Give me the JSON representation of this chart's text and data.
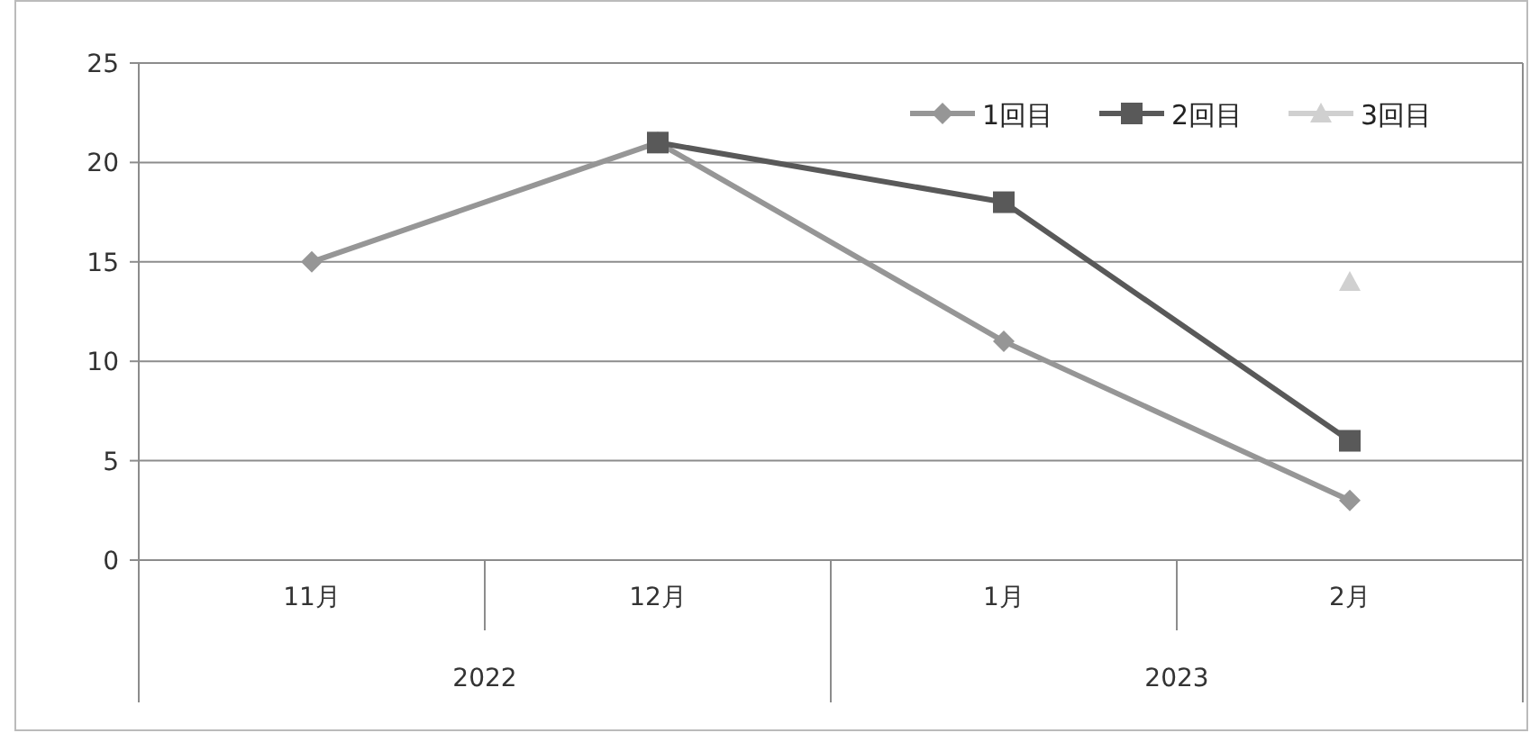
{
  "chart_data": {
    "type": "line",
    "categories": [
      "11月",
      "12月",
      "1月",
      "2月"
    ],
    "series": [
      {
        "name": "1回目",
        "color": "#969696",
        "marker": "diamond",
        "values": [
          15,
          21,
          11,
          3
        ]
      },
      {
        "name": "2回目",
        "color": "#595959",
        "marker": "square",
        "values": [
          null,
          21,
          18,
          6
        ]
      },
      {
        "name": "3回目",
        "color": "#d0d0d0",
        "marker": "triangle",
        "values": [
          null,
          null,
          null,
          14
        ]
      }
    ],
    "annotations": [
      "2022",
      "2023"
    ],
    "ylim": [
      0,
      25
    ],
    "yticks": [
      0,
      5,
      10,
      15,
      20,
      25
    ],
    "grid": "y",
    "legend": "top right"
  }
}
